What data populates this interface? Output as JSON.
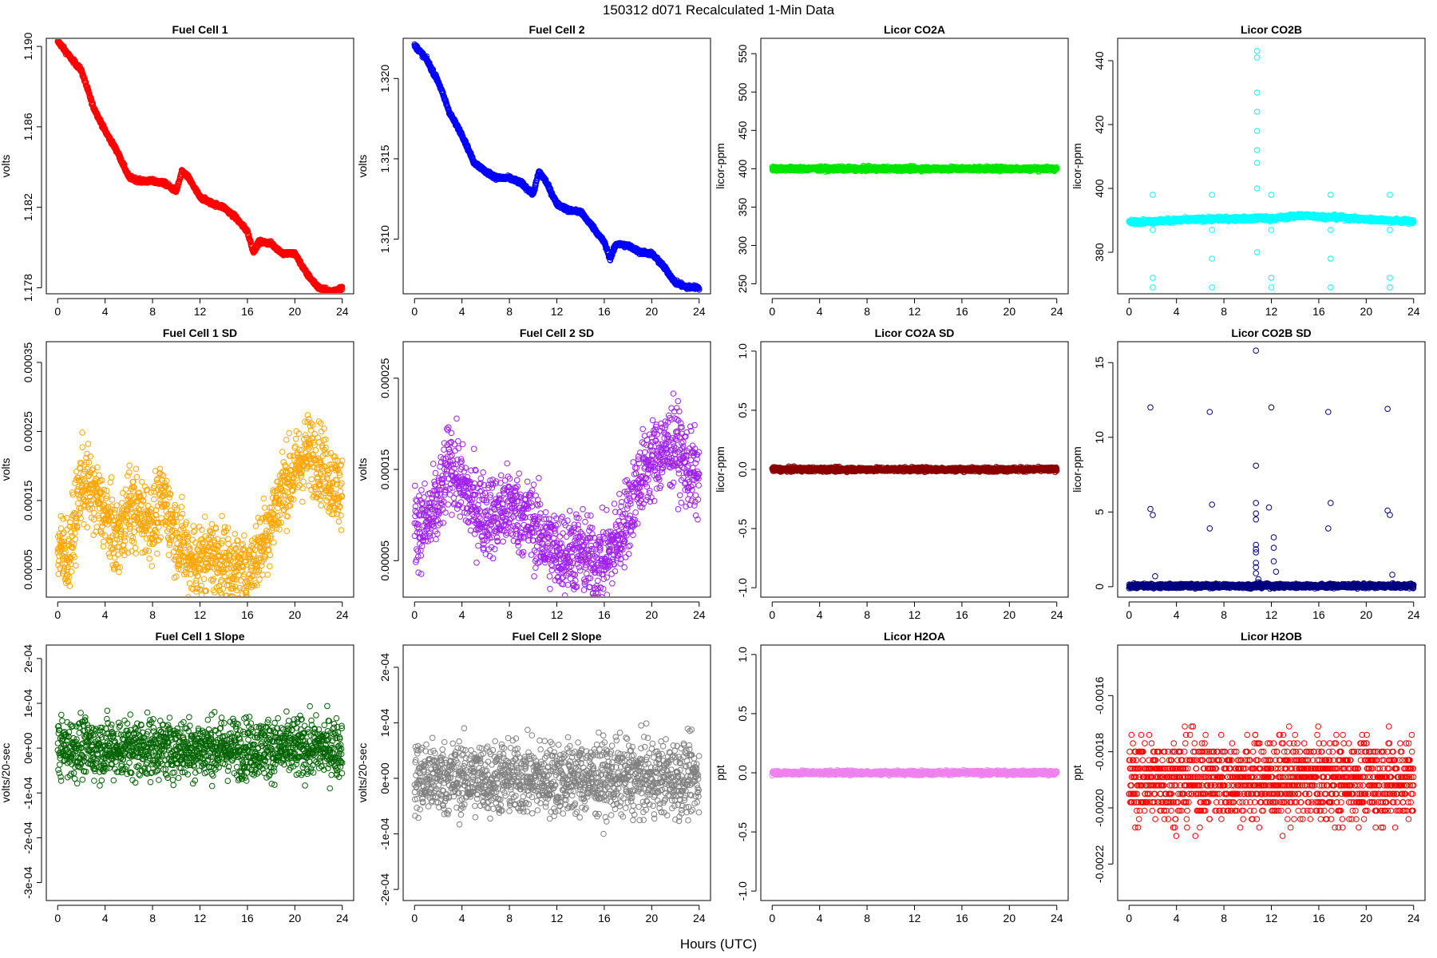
{
  "figure": {
    "title": "150312    d071    Recalculated 1-Min Data",
    "xlabel": "Hours (UTC)"
  },
  "chart_data": [
    {
      "type": "scatter",
      "title": "Fuel Cell 1",
      "ylabel": "volts",
      "color": "#ff0000",
      "xlim": [
        0,
        24
      ],
      "ylim": [
        1.1777,
        1.1904
      ],
      "xticks": [
        "0",
        "4",
        "8",
        "12",
        "16",
        "20",
        "24"
      ],
      "yticks": [
        {
          "value": 1.178,
          "label": "1.178"
        },
        {
          "value": 1.182,
          "label": "1.182"
        },
        {
          "value": 1.186,
          "label": "1.186"
        },
        {
          "value": 1.19,
          "label": "1.190"
        }
      ],
      "series": [
        {
          "name": "Fuel Cell 1",
          "x": [
            0.1,
            1,
            2,
            3,
            4,
            5,
            6,
            7,
            8,
            9,
            10,
            10.5,
            11,
            12,
            13,
            14,
            15,
            16,
            16.5,
            17,
            18,
            19,
            20,
            21,
            22,
            23,
            24
          ],
          "y": [
            1.1902,
            1.1895,
            1.1888,
            1.187,
            1.1858,
            1.1848,
            1.1835,
            1.1833,
            1.1833,
            1.1832,
            1.1828,
            1.1838,
            1.1835,
            1.1825,
            1.1822,
            1.182,
            1.1815,
            1.1808,
            1.1798,
            1.1803,
            1.1802,
            1.1797,
            1.1797,
            1.1787,
            1.178,
            1.1778,
            1.178
          ]
        }
      ]
    },
    {
      "type": "scatter",
      "title": "Fuel Cell 2",
      "ylabel": "volts",
      "color": "#0000ff",
      "xlim": [
        0,
        24
      ],
      "ylim": [
        1.3066,
        1.3225
      ],
      "xticks": [
        "0",
        "4",
        "8",
        "12",
        "16",
        "20",
        "24"
      ],
      "yticks": [
        {
          "value": 1.31,
          "label": "1.310"
        },
        {
          "value": 1.315,
          "label": "1.315"
        },
        {
          "value": 1.32,
          "label": "1.320"
        }
      ],
      "series": [
        {
          "name": "Fuel Cell 2",
          "x": [
            0.1,
            1,
            2,
            3,
            4,
            5,
            6,
            7,
            8,
            9,
            10,
            10.5,
            11,
            12,
            13,
            14,
            15,
            16,
            16.5,
            17,
            18,
            19,
            20,
            21,
            22,
            23,
            24
          ],
          "y": [
            1.322,
            1.3212,
            1.3198,
            1.3178,
            1.3165,
            1.3148,
            1.3142,
            1.3138,
            1.3138,
            1.3135,
            1.3128,
            1.3142,
            1.3137,
            1.3122,
            1.3118,
            1.3117,
            1.3108,
            1.3098,
            1.3088,
            1.3097,
            1.3096,
            1.3092,
            1.3091,
            1.3083,
            1.3073,
            1.307,
            1.307
          ]
        }
      ]
    },
    {
      "type": "scatter",
      "title": "Licor CO2A",
      "ylabel": "licor-ppm",
      "color": "#00e600",
      "xlim": [
        0,
        24
      ],
      "ylim": [
        237,
        570
      ],
      "xticks": [
        "0",
        "4",
        "8",
        "12",
        "16",
        "20",
        "24"
      ],
      "yticks": [
        {
          "value": 250,
          "label": "250"
        },
        {
          "value": 300,
          "label": "300"
        },
        {
          "value": 350,
          "label": "350"
        },
        {
          "value": 400,
          "label": "400"
        },
        {
          "value": 450,
          "label": "450"
        },
        {
          "value": 500,
          "label": "500"
        },
        {
          "value": 550,
          "label": "550"
        }
      ],
      "series": [
        {
          "name": "Licor CO2A",
          "x": [
            0,
            24
          ],
          "y": [
            400,
            400
          ]
        }
      ]
    },
    {
      "type": "scatter",
      "title": "Licor CO2B",
      "ylabel": "licor-ppm",
      "color": "#00ffff",
      "xlim": [
        0,
        24
      ],
      "ylim": [
        367,
        447
      ],
      "xticks": [
        "0",
        "4",
        "8",
        "12",
        "16",
        "20",
        "24"
      ],
      "yticks": [
        {
          "value": 380,
          "label": "380"
        },
        {
          "value": 400,
          "label": "400"
        },
        {
          "value": 420,
          "label": "420"
        },
        {
          "value": 440,
          "label": "440"
        }
      ],
      "series": [
        {
          "name": "Licor CO2B",
          "x": [
            0,
            2,
            4,
            6,
            8,
            10,
            11,
            12,
            14,
            15,
            16,
            18,
            20,
            22,
            24
          ],
          "y": [
            389.5,
            389.7,
            390,
            390.3,
            390.5,
            390.5,
            390.7,
            390.5,
            391.3,
            391.5,
            391.2,
            390.8,
            390.3,
            390,
            389.6
          ]
        }
      ],
      "annotations_outliers": [
        {
          "x": 2.0,
          "y": [
            369,
            372,
            387,
            398
          ]
        },
        {
          "x": 7.0,
          "y": [
            369,
            378,
            387,
            398
          ]
        },
        {
          "x": 10.8,
          "y": [
            380,
            400,
            408,
            412,
            418,
            424,
            430,
            441,
            443
          ]
        },
        {
          "x": 12.0,
          "y": [
            369,
            372,
            387,
            398
          ]
        },
        {
          "x": 17.0,
          "y": [
            369,
            378,
            387,
            398
          ]
        },
        {
          "x": 22.0,
          "y": [
            369,
            372,
            387,
            398
          ]
        }
      ]
    },
    {
      "type": "scatter",
      "title": "Fuel Cell 1 SD",
      "ylabel": "volts",
      "color": "#ffa500",
      "xlim": [
        0,
        24
      ],
      "ylim": [
        1e-05,
        0.00038
      ],
      "xticks": [
        "0",
        "4",
        "8",
        "12",
        "16",
        "20",
        "24"
      ],
      "yticks": [
        {
          "value": 5e-05,
          "label": "0.00005"
        },
        {
          "value": 0.00015,
          "label": "0.00015"
        },
        {
          "value": 0.00025,
          "label": "0.00025"
        },
        {
          "value": 0.00035,
          "label": "0.00035"
        }
      ],
      "series": [
        {
          "name": "Fuel Cell 1 SD",
          "x": [
            0,
            1,
            2,
            3,
            4,
            5,
            6,
            7,
            8,
            9,
            10,
            11,
            12,
            13,
            14,
            15,
            16,
            17,
            18,
            19,
            20,
            21,
            22,
            23,
            24
          ],
          "y": [
            8e-05,
            7e-05,
            0.00018,
            0.00016,
            0.00013,
            9e-05,
            0.00014,
            0.00013,
            0.00012,
            0.00015,
            0.0001,
            7e-05,
            6e-05,
            7e-05,
            6e-05,
            5e-05,
            4e-05,
            8e-05,
            0.00012,
            0.00017,
            0.00019,
            0.00022,
            0.00021,
            0.00018,
            0.00016
          ],
          "spread": 5e-05
        }
      ]
    },
    {
      "type": "scatter",
      "title": "Fuel Cell 2 SD",
      "ylabel": "volts",
      "color": "#a020f0",
      "xlim": [
        0,
        24
      ],
      "ylim": [
        1e-05,
        0.00029
      ],
      "xticks": [
        "0",
        "4",
        "8",
        "12",
        "16",
        "20",
        "24"
      ],
      "yticks": [
        {
          "value": 5e-05,
          "label": "0.00005"
        },
        {
          "value": 0.00015,
          "label": "0.00015"
        },
        {
          "value": 0.00025,
          "label": "0.00025"
        }
      ],
      "series": [
        {
          "name": "Fuel Cell 2 SD",
          "x": [
            0,
            1,
            2,
            3,
            4,
            5,
            6,
            7,
            8,
            9,
            10,
            11,
            12,
            13,
            14,
            15,
            16,
            17,
            18,
            19,
            20,
            21,
            22,
            23,
            24
          ],
          "y": [
            9e-05,
            9e-05,
            0.00011,
            0.00016,
            0.00013,
            0.00011,
            0.0001,
            0.0001,
            0.00011,
            0.0001,
            9e-05,
            7e-05,
            6e-05,
            6e-05,
            6e-05,
            5e-05,
            5e-05,
            7e-05,
            0.0001,
            0.00014,
            0.00016,
            0.00017,
            0.00018,
            0.00015,
            0.00014
          ],
          "spread": 4e-05
        }
      ]
    },
    {
      "type": "scatter",
      "title": "Licor CO2A SD",
      "ylabel": "licor-ppm",
      "color": "#8b0000",
      "xlim": [
        0,
        24
      ],
      "ylim": [
        -1.08,
        1.08
      ],
      "xticks": [
        "0",
        "4",
        "8",
        "12",
        "16",
        "20",
        "24"
      ],
      "yticks": [
        {
          "value": -1.0,
          "label": "-1.0"
        },
        {
          "value": -0.5,
          "label": "-0.5"
        },
        {
          "value": 0.0,
          "label": "0.0"
        },
        {
          "value": 0.5,
          "label": "0.5"
        },
        {
          "value": 1.0,
          "label": "1.0"
        }
      ],
      "series": [
        {
          "name": "Licor CO2A SD",
          "x": [
            0,
            24
          ],
          "y": [
            0,
            0
          ]
        }
      ]
    },
    {
      "type": "scatter",
      "title": "Licor CO2B SD",
      "ylabel": "licor-ppm",
      "color": "#000080",
      "xlim": [
        0,
        24
      ],
      "ylim": [
        -0.7,
        16.4
      ],
      "xticks": [
        "0",
        "4",
        "8",
        "12",
        "16",
        "20",
        "24"
      ],
      "yticks": [
        {
          "value": 0,
          "label": "0"
        },
        {
          "value": 5,
          "label": "5"
        },
        {
          "value": 10,
          "label": "10"
        },
        {
          "value": 15,
          "label": "15"
        }
      ],
      "series": [
        {
          "name": "Licor CO2B SD",
          "x": [
            0,
            24
          ],
          "y": [
            0.05,
            0.05
          ]
        }
      ],
      "annotations_outliers": [
        {
          "x": 1.8,
          "y": [
            5.2,
            12.0
          ]
        },
        {
          "x": 2.0,
          "y": [
            4.8
          ]
        },
        {
          "x": 2.2,
          "y": [
            0.7
          ]
        },
        {
          "x": 6.8,
          "y": [
            3.9,
            11.7
          ]
        },
        {
          "x": 7.0,
          "y": [
            5.5
          ]
        },
        {
          "x": 10.7,
          "y": [
            0.2,
            0.9,
            1.3,
            1.6,
            2.3,
            2.5,
            2.8,
            4.5,
            4.9,
            5.6,
            8.1,
            15.8
          ]
        },
        {
          "x": 10.9,
          "y": [
            0.3,
            0.5
          ]
        },
        {
          "x": 11.8,
          "y": [
            5.3
          ]
        },
        {
          "x": 12.0,
          "y": [
            12.0
          ]
        },
        {
          "x": 12.2,
          "y": [
            1.7,
            2.6,
            3.3
          ]
        },
        {
          "x": 12.4,
          "y": [
            1.0
          ]
        },
        {
          "x": 16.8,
          "y": [
            3.9,
            11.7
          ]
        },
        {
          "x": 17.0,
          "y": [
            5.6
          ]
        },
        {
          "x": 21.8,
          "y": [
            5.1,
            11.9
          ]
        },
        {
          "x": 22.0,
          "y": [
            4.8
          ]
        },
        {
          "x": 22.2,
          "y": [
            0.8
          ]
        }
      ]
    },
    {
      "type": "scatter",
      "title": "Fuel Cell 1 Slope",
      "ylabel": "volts/20-sec",
      "color": "#006400",
      "xlim": [
        0,
        24
      ],
      "ylim": [
        -0.00034,
        0.00023
      ],
      "xticks": [
        "0",
        "4",
        "8",
        "12",
        "16",
        "20",
        "24"
      ],
      "yticks": [
        {
          "value": -0.0003,
          "label": "-3e-04"
        },
        {
          "value": -0.0002,
          "label": "-2e-04"
        },
        {
          "value": -0.0001,
          "label": "-1e-04"
        },
        {
          "value": 0.0,
          "label": "0e+00"
        },
        {
          "value": 0.0001,
          "label": "1e-04"
        },
        {
          "value": 0.0002,
          "label": "2e-04"
        }
      ],
      "series": [
        {
          "name": "Fuel Cell 1 Slope",
          "x": [
            0,
            24
          ],
          "y": [
            0,
            0
          ],
          "spread": 6e-05
        }
      ]
    },
    {
      "type": "scatter",
      "title": "Fuel Cell 2 Slope",
      "ylabel": "volts/20-sec",
      "color": "#808080",
      "xlim": [
        0,
        24
      ],
      "ylim": [
        -0.00022,
        0.00024
      ],
      "xticks": [
        "0",
        "4",
        "8",
        "12",
        "16",
        "20",
        "24"
      ],
      "yticks": [
        {
          "value": -0.0002,
          "label": "-2e-04"
        },
        {
          "value": -0.0001,
          "label": "-1e-04"
        },
        {
          "value": 0.0,
          "label": "0e+00"
        },
        {
          "value": 0.0001,
          "label": "1e-04"
        },
        {
          "value": 0.0002,
          "label": "2e-04"
        }
      ],
      "series": [
        {
          "name": "Fuel Cell 2 Slope",
          "x": [
            0,
            24
          ],
          "y": [
            0,
            0
          ],
          "spread": 6e-05
        }
      ]
    },
    {
      "type": "scatter",
      "title": "Licor H2OA",
      "ylabel": "ppt",
      "color": "#ee82ee",
      "xlim": [
        0,
        24
      ],
      "ylim": [
        -1.08,
        1.08
      ],
      "xticks": [
        "0",
        "4",
        "8",
        "12",
        "16",
        "20",
        "24"
      ],
      "yticks": [
        {
          "value": -1.0,
          "label": "-1.0"
        },
        {
          "value": -0.5,
          "label": "-0.5"
        },
        {
          "value": 0.0,
          "label": "0.0"
        },
        {
          "value": 0.5,
          "label": "0.5"
        },
        {
          "value": 1.0,
          "label": "1.0"
        }
      ],
      "series": [
        {
          "name": "Licor H2OA",
          "x": [
            0,
            24
          ],
          "y": [
            0,
            0
          ]
        }
      ]
    },
    {
      "type": "scatter",
      "title": "Licor H2OB",
      "ylabel": "ppt",
      "color": "#ff0000",
      "xlim": [
        0,
        24
      ],
      "ylim": [
        -0.00233,
        -0.00142
      ],
      "xticks": [
        "0",
        "4",
        "8",
        "12",
        "16",
        "20",
        "24"
      ],
      "yticks": [
        {
          "value": -0.0022,
          "label": "-0.0022"
        },
        {
          "value": -0.002,
          "label": "-0.0020"
        },
        {
          "value": -0.0018,
          "label": "-0.0018"
        },
        {
          "value": -0.0016,
          "label": "-0.0016"
        }
      ],
      "series": [
        {
          "name": "Licor H2OB",
          "x": [
            0,
            24
          ],
          "y": [
            -0.0019,
            -0.0019
          ],
          "spread": 0.00013,
          "quantum": 3e-05
        }
      ]
    }
  ]
}
